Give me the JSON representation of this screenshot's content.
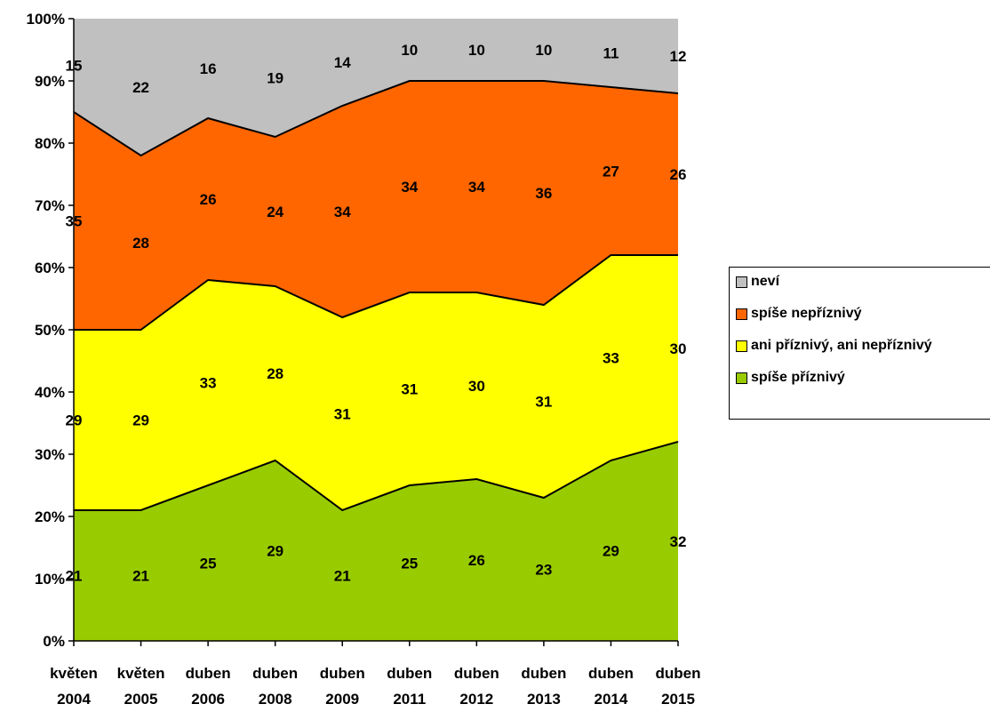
{
  "chart_data": {
    "type": "area",
    "stacked": true,
    "percent": true,
    "categories": [
      [
        "květen",
        "2004"
      ],
      [
        "květen",
        "2005"
      ],
      [
        "duben",
        "2006"
      ],
      [
        "duben",
        "2008"
      ],
      [
        "duben",
        "2009"
      ],
      [
        "duben",
        "2011"
      ],
      [
        "duben",
        "2012"
      ],
      [
        "duben",
        "2013"
      ],
      [
        "duben",
        "2014"
      ],
      [
        "duben",
        "2015"
      ]
    ],
    "series": [
      {
        "name": "spíše příznivý",
        "color": "#99CC00",
        "values": [
          21,
          21,
          25,
          29,
          21,
          25,
          26,
          23,
          29,
          32
        ]
      },
      {
        "name": "ani příznivý, ani nepříznivý",
        "color": "#FFFF00",
        "values": [
          29,
          29,
          33,
          28,
          31,
          31,
          30,
          31,
          33,
          30
        ]
      },
      {
        "name": "spíše nepříznivý",
        "color": "#FF6600",
        "values": [
          35,
          28,
          26,
          24,
          34,
          34,
          34,
          36,
          27,
          26
        ]
      },
      {
        "name": "neví",
        "color": "#C0C0C0",
        "values": [
          15,
          22,
          16,
          19,
          14,
          10,
          10,
          10,
          11,
          12
        ]
      }
    ],
    "legend_order": [
      "neví",
      "spíše nepříznivý",
      "ani příznivý, ani nepříznivý",
      "spíše příznivý"
    ],
    "yticks": [
      "0%",
      "10%",
      "20%",
      "30%",
      "40%",
      "50%",
      "60%",
      "70%",
      "80%",
      "90%",
      "100%"
    ],
    "ylim": [
      0,
      100
    ],
    "legend_position": "right"
  }
}
